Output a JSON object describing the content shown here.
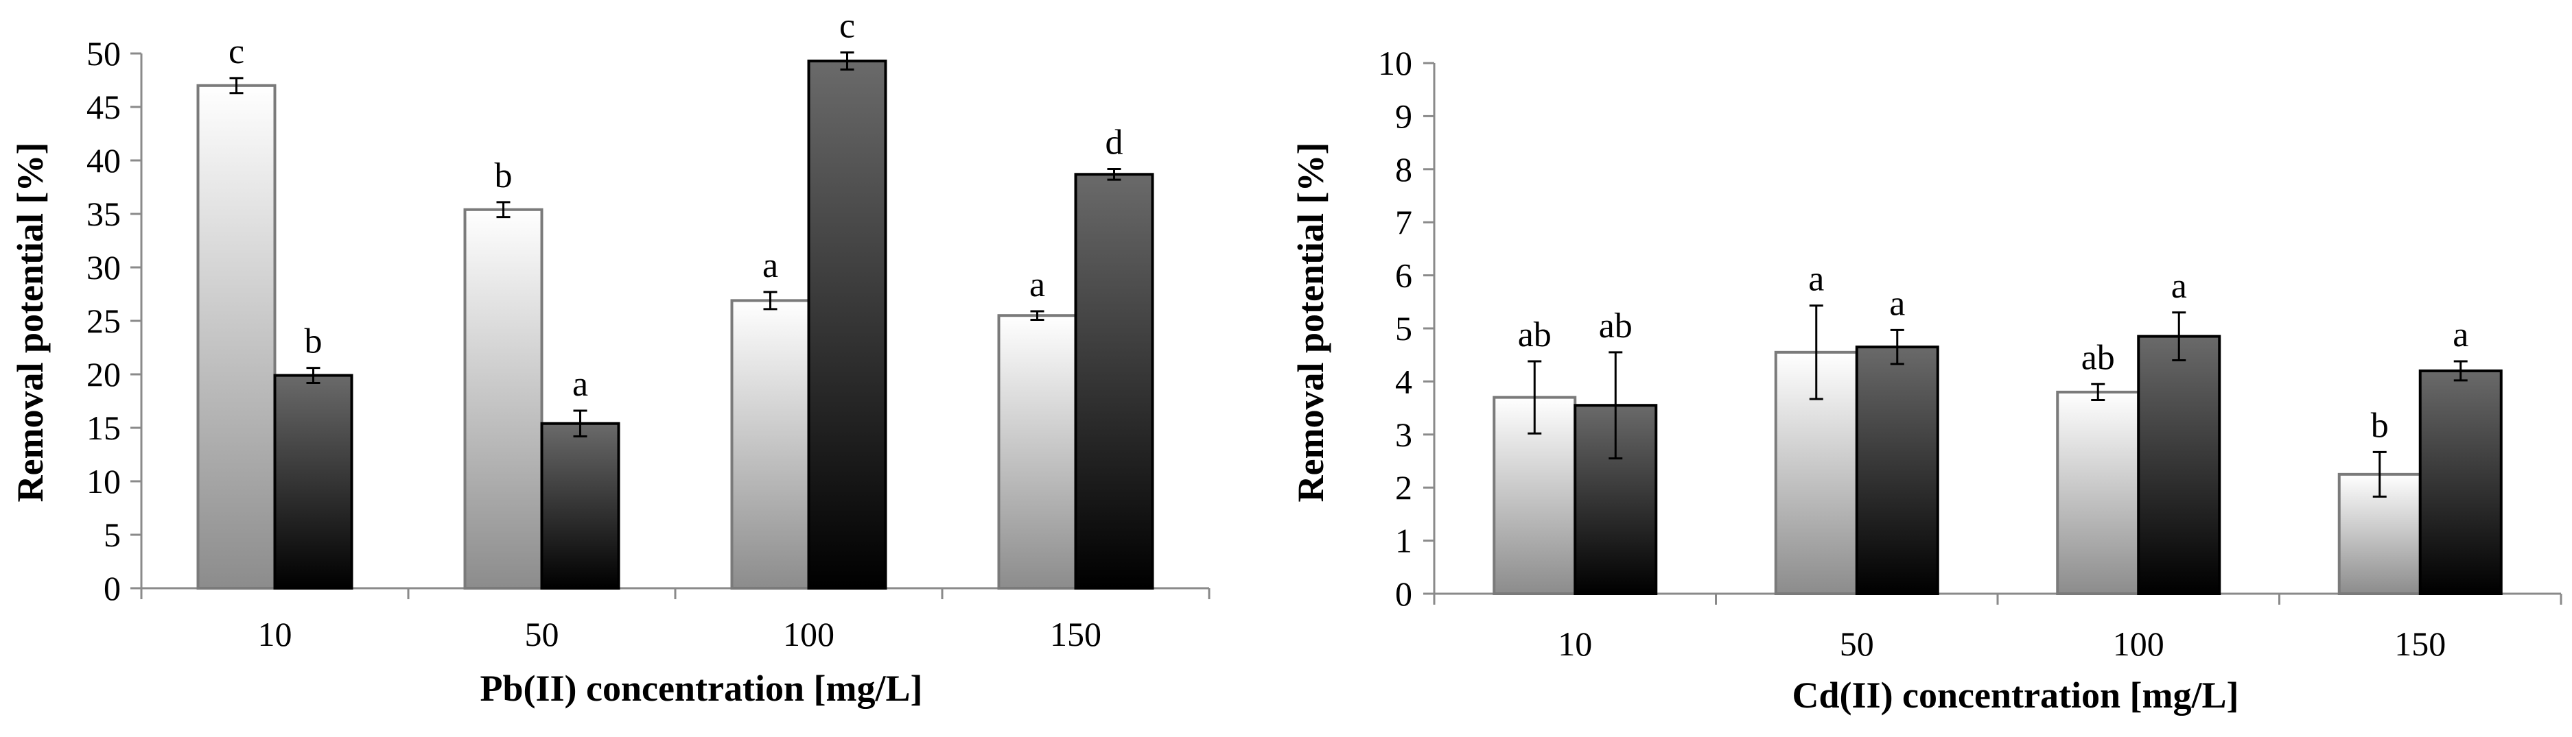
{
  "chart_data": [
    {
      "type": "bar",
      "xlabel": "Pb(II) concentration [mg/L]",
      "ylabel": "Removal potential [%]",
      "ylim": [
        0,
        50
      ],
      "ytick_step": 5,
      "categories": [
        "10",
        "50",
        "100",
        "150"
      ],
      "series": [
        {
          "color_top": "#ffffff",
          "color_bottom": "#8c8c8c",
          "stroke": "#7a7a7a",
          "values": [
            47,
            35.4,
            26.9,
            25.5
          ],
          "errors": [
            0.7,
            0.7,
            0.8,
            0.4
          ],
          "sig_labels": [
            "c",
            "b",
            "a",
            "a"
          ]
        },
        {
          "color_top": "#6a6a6a",
          "color_bottom": "#000000",
          "stroke": "#000000",
          "values": [
            19.9,
            15.4,
            49.3,
            38.7
          ],
          "errors": [
            0.7,
            1.2,
            0.8,
            0.5
          ],
          "sig_labels": [
            "b",
            "a",
            "c",
            "d"
          ]
        }
      ],
      "grid": false,
      "legend": "none"
    },
    {
      "type": "bar",
      "xlabel": "Cd(II) concentration [mg/L]",
      "ylabel": "Removal potential [%]",
      "ylim": [
        0,
        10
      ],
      "ytick_step": 1,
      "categories": [
        "10",
        "50",
        "100",
        "150"
      ],
      "series": [
        {
          "color_top": "#ffffff",
          "color_bottom": "#8c8c8c",
          "stroke": "#7a7a7a",
          "values": [
            3.7,
            4.55,
            3.8,
            2.25
          ],
          "errors": [
            0.68,
            0.88,
            0.15,
            0.42
          ],
          "sig_labels": [
            "ab",
            "a",
            "ab",
            "b"
          ]
        },
        {
          "color_top": "#6a6a6a",
          "color_bottom": "#000000",
          "stroke": "#000000",
          "values": [
            3.55,
            4.65,
            4.85,
            4.2
          ],
          "errors": [
            1.0,
            0.32,
            0.45,
            0.18
          ],
          "sig_labels": [
            "ab",
            "a",
            "a",
            "a"
          ]
        }
      ],
      "grid": false,
      "legend": "none"
    }
  ]
}
